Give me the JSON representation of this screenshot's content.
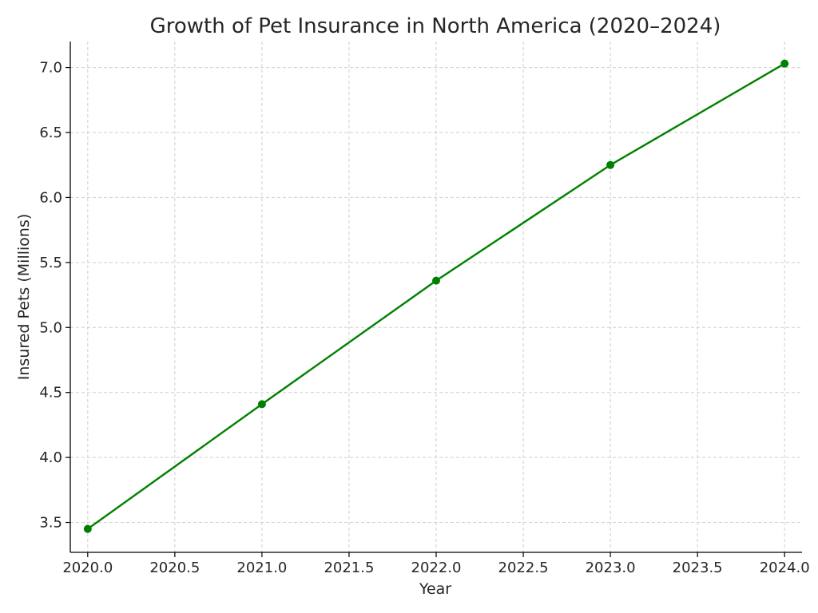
{
  "chart_data": {
    "type": "line",
    "title": "Growth of Pet Insurance in North America (2020–2024)",
    "xlabel": "Year",
    "ylabel": "Insured Pets (Millions)",
    "xlim": [
      2019.9,
      2024.1
    ],
    "ylim": [
      3.27,
      7.2
    ],
    "x_ticks": [
      2020.0,
      2020.5,
      2021.0,
      2021.5,
      2022.0,
      2022.5,
      2023.0,
      2023.5,
      2024.0
    ],
    "x_tick_labels": [
      "2020.0",
      "2020.5",
      "2021.0",
      "2021.5",
      "2022.0",
      "2022.5",
      "2023.0",
      "2023.5",
      "2024.0"
    ],
    "y_ticks": [
      3.5,
      4.0,
      4.5,
      5.0,
      5.5,
      6.0,
      6.5,
      7.0
    ],
    "y_tick_labels": [
      "3.5",
      "4.0",
      "4.5",
      "5.0",
      "5.5",
      "6.0",
      "6.5",
      "7.0"
    ],
    "grid": true,
    "series": [
      {
        "color": "#008000",
        "marker": "circle",
        "x": [
          2020,
          2021,
          2022,
          2023,
          2024
        ],
        "y": [
          3.45,
          4.41,
          5.36,
          6.25,
          7.03
        ]
      }
    ]
  }
}
